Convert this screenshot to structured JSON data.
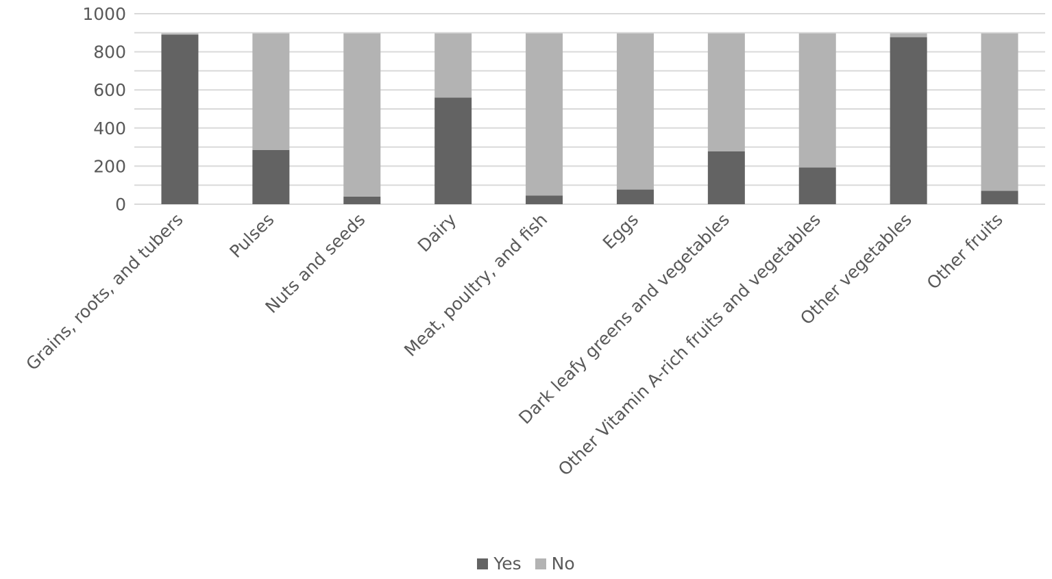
{
  "chart_data": {
    "type": "bar",
    "stacked": true,
    "categories": [
      "Grains, roots, and tubers",
      "Pulses",
      "Nuts and seeds",
      "Dairy",
      "Meat, poultry, and fish",
      "Eggs",
      "Dark leafy greens and vegetables",
      "Other Vitamin A-rich fruits and vegetables",
      "Other vegetables",
      "Other fruits"
    ],
    "series": [
      {
        "name": "Yes",
        "color": "#636363",
        "values": [
          890,
          285,
          40,
          560,
          45,
          77,
          277,
          193,
          877,
          70
        ]
      },
      {
        "name": "No",
        "color": "#b3b3b3",
        "values": [
          7,
          612,
          857,
          337,
          852,
          820,
          620,
          704,
          20,
          827
        ]
      }
    ],
    "ylim": [
      0,
      1000
    ],
    "yticks": [
      "0",
      "200",
      "400",
      "600",
      "800",
      "1000"
    ],
    "ytick_values": [
      0,
      200,
      400,
      600,
      800,
      1000
    ],
    "grid": true,
    "legend_position": "bottom",
    "title": "",
    "xlabel": "",
    "ylabel": ""
  }
}
